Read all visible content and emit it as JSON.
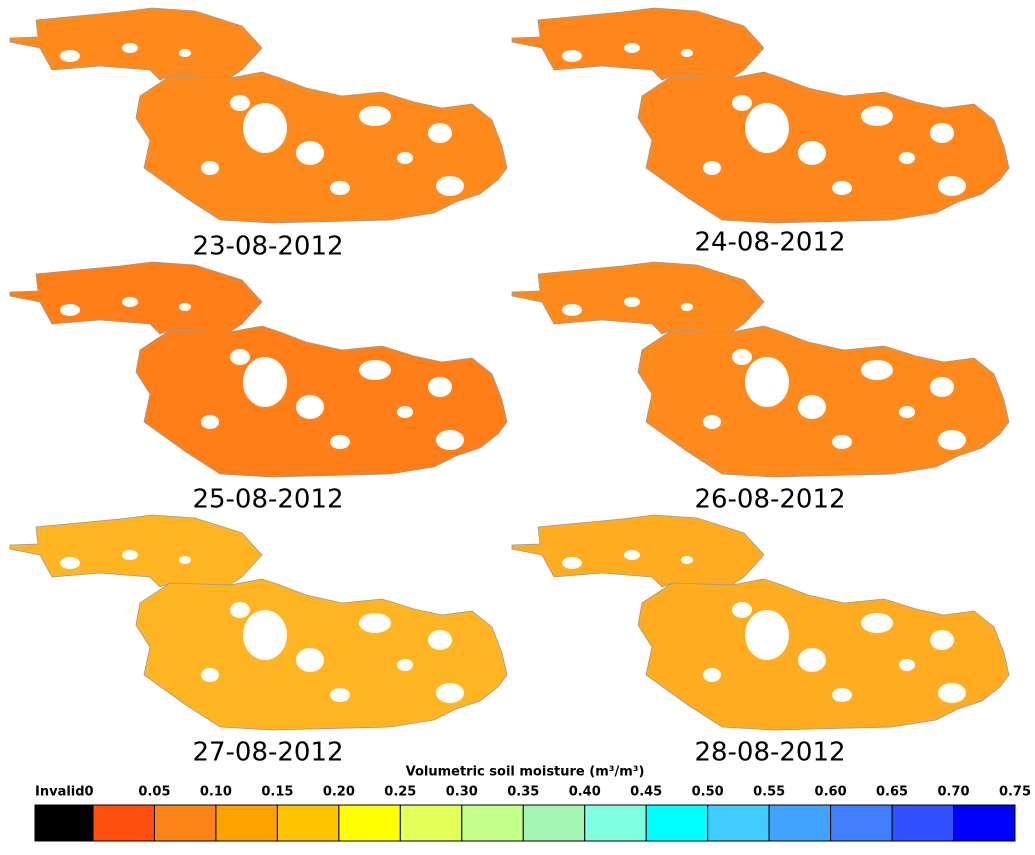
{
  "maps": [
    {
      "date": "23-08-2012"
    },
    {
      "date": "24-08-2012"
    },
    {
      "date": "25-08-2012"
    },
    {
      "date": "26-08-2012"
    },
    {
      "date": "27-08-2012"
    },
    {
      "date": "28-08-2012"
    }
  ],
  "legend": {
    "title": "Volumetric soil moisture (m³/m³)",
    "invalid_label": "Invalid",
    "labels": [
      "0",
      "0.05",
      "0.10",
      "0.15",
      "0.20",
      "0.25",
      "0.30",
      "0.35",
      "0.40",
      "0.45",
      "0.50",
      "0.55",
      "0.60",
      "0.65",
      "0.70",
      "0.75"
    ],
    "colors": [
      "#000000",
      "#ff5010",
      "#ff8418",
      "#ffa200",
      "#ffc400",
      "#ffff00",
      "#e4ff5a",
      "#c4ff8c",
      "#a4f4b4",
      "#80ffe0",
      "#00ffff",
      "#40ccff",
      "#40a4ff",
      "#4080ff",
      "#3050ff",
      "#0000ff"
    ]
  }
}
